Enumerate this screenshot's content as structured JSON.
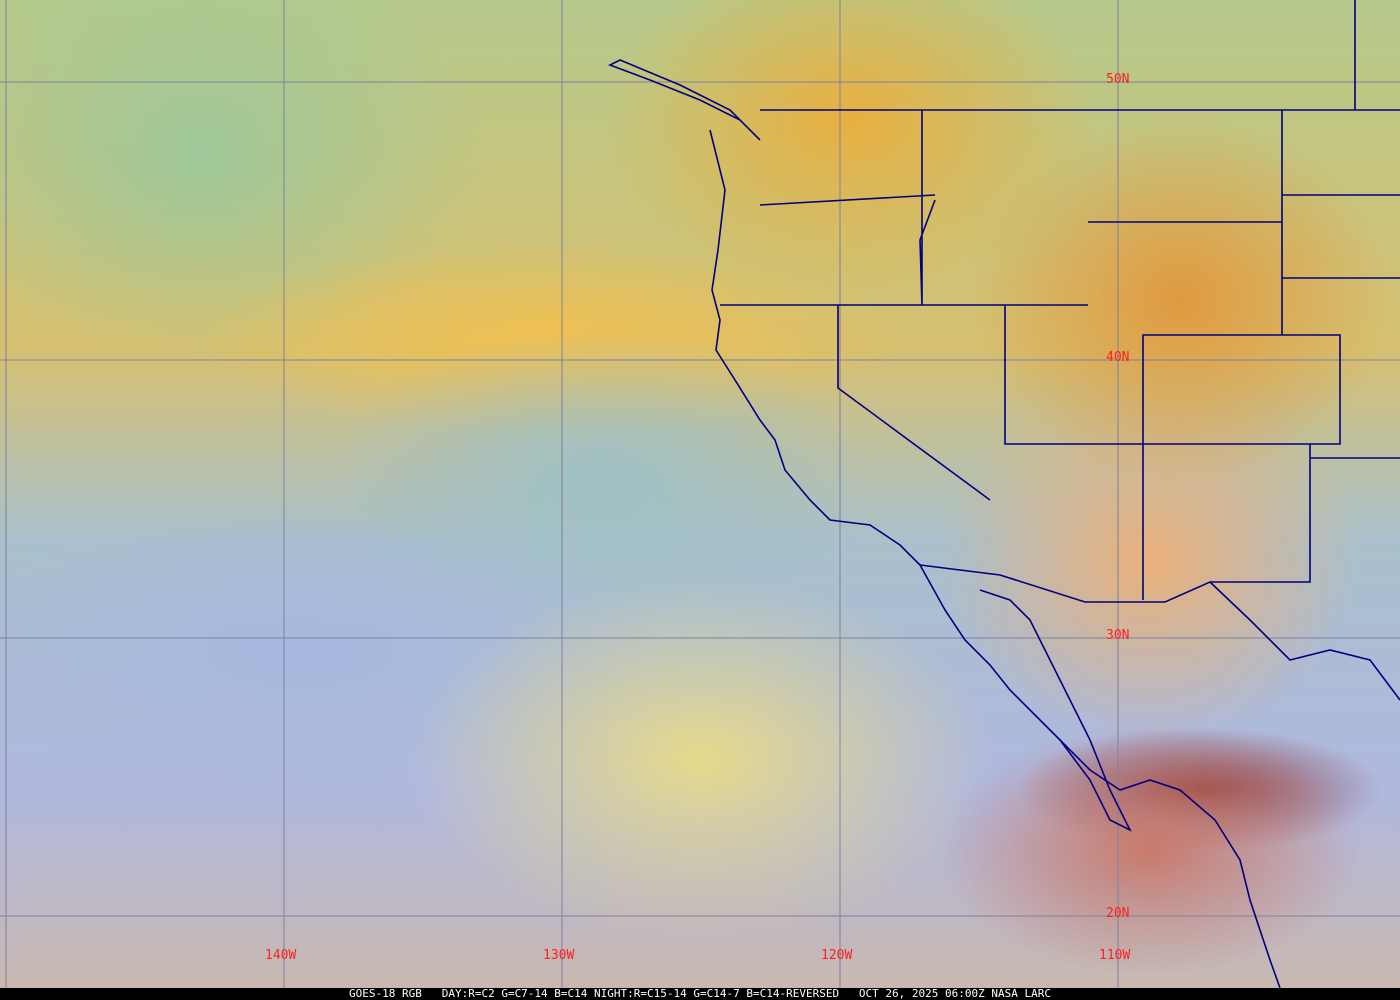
{
  "image": {
    "satellite": "GOES-18",
    "product": "RGB",
    "recipe": "DAY:R=C2 G=C7-14 B=C14 NIGHT:R=C15-14 G=C14-7 B=C14-REVERSED",
    "datetime": "OCT 26, 2025 06:00Z",
    "credit": "NASA LARC",
    "caption": "GOES-18 RGB   DAY:R=C2 G=C7-14 B=C14 NIGHT:R=C15-14 G=C14-7 B=C14-REVERSED   OCT 26, 2025 06:00Z NASA LARC"
  },
  "grid": {
    "latitude_labels": [
      "50N",
      "40N",
      "30N",
      "20N"
    ],
    "longitude_labels": [
      "140W",
      "130W",
      "120W",
      "110W"
    ],
    "grid_color": "#8080a0",
    "label_color": "#ff2020",
    "boundary_color": "#000080"
  }
}
